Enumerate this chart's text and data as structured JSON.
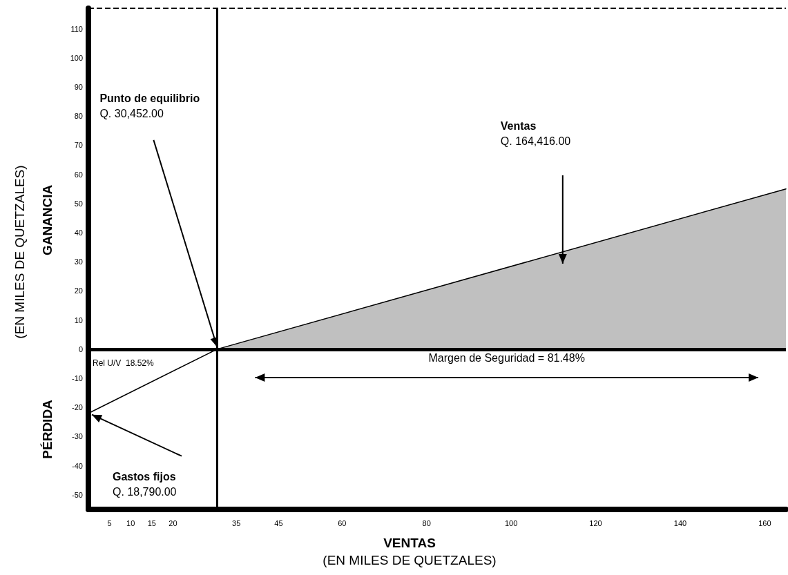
{
  "chart_data": {
    "type": "line",
    "xlabel": "VENTAS\n(EN MILES DE QUETZALES)",
    "ylabel": "(EN MILES DE QUETZALES)",
    "xlim": [
      0,
      165
    ],
    "xticks": [
      5,
      10,
      15,
      20,
      35,
      45,
      60,
      80,
      100,
      120,
      140,
      160
    ],
    "ylim": [
      -55,
      117
    ],
    "yticks": [
      -50,
      -40,
      -30,
      -20,
      -10,
      0,
      10,
      20,
      30,
      40,
      50,
      60,
      70,
      80,
      90,
      100,
      110
    ],
    "series": [
      {
        "type": "area",
        "color": "#c0c0c0",
        "x": [
          30.452,
          165
        ],
        "values": [
          0,
          55
        ]
      },
      {
        "color": "#000000",
        "x": [
          0,
          30.452,
          165
        ],
        "values": [
          -22,
          0,
          55
        ]
      }
    ],
    "ref_lines": [
      {
        "axis": "y",
        "value": 0,
        "color": "#000000",
        "line_style": "solid"
      },
      {
        "axis": "x",
        "value": 30.452,
        "color": "#000000",
        "line_style": "solid"
      },
      {
        "axis": "y",
        "value": 117,
        "color": "#000000",
        "line_style": "dashed"
      }
    ],
    "annotations": [
      "Punto de equilibrio\nQ. 30,452.00",
      "Ventas\nQ. 164,416.00",
      "Gastos fijos\nQ. 18,790.00",
      "Margen de Seguridad = 81.48%",
      "Rel U/V  18.52%",
      "GANANCIA",
      "PÉRDIDA"
    ],
    "grid": false,
    "marker": "none",
    "line_style": "solid"
  }
}
